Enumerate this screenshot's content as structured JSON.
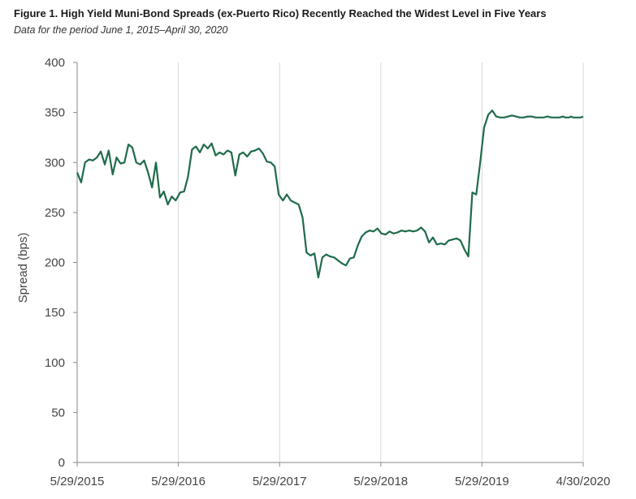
{
  "header": {
    "title": "Figure 1. High Yield Muni-Bond Spreads (ex-Puerto Rico) Recently Reached the Widest Level in Five Years",
    "subtitle": "Data for the period June 1, 2015–April 30, 2020"
  },
  "chart_data": {
    "type": "line",
    "title": "Figure 1. High Yield Muni-Bond Spreads (ex-Puerto Rico) Recently Reached the Widest Level in Five Years",
    "subtitle": "Data for the period June 1, 2015–April 30, 2020",
    "xlabel": "",
    "ylabel": "Spread (bps)",
    "x_ticks": [
      "5/29/2015",
      "5/29/2016",
      "5/29/2017",
      "5/29/2018",
      "5/29/2019",
      "4/30/2020"
    ],
    "y_ticks": [
      0,
      50,
      100,
      150,
      200,
      250,
      300,
      350,
      400
    ],
    "ylim": [
      0,
      400
    ],
    "xlim": [
      "2015-05-29",
      "2020-04-30"
    ],
    "grid": "vertical",
    "line_color": "#1f6b4a",
    "series": [
      {
        "x": [
          "2015-05-29",
          "2015-06-12",
          "2015-06-26",
          "2015-07-10",
          "2015-07-24",
          "2015-08-07",
          "2015-08-21",
          "2015-09-04",
          "2015-09-18",
          "2015-10-02",
          "2015-10-16",
          "2015-10-30",
          "2015-11-13",
          "2015-11-27",
          "2015-12-11",
          "2015-12-25",
          "2016-01-08",
          "2016-01-22",
          "2016-02-05",
          "2016-02-19",
          "2016-03-04",
          "2016-03-18",
          "2016-04-01",
          "2016-04-15",
          "2016-04-29",
          "2016-05-13",
          "2016-05-29",
          "2016-06-12",
          "2016-06-26",
          "2016-07-10",
          "2016-07-24",
          "2016-08-07",
          "2016-08-21",
          "2016-09-04",
          "2016-09-18",
          "2016-10-02",
          "2016-10-16",
          "2016-10-30",
          "2016-11-13",
          "2016-11-27",
          "2016-12-11",
          "2016-12-25",
          "2017-01-08",
          "2017-01-22",
          "2017-02-05",
          "2017-02-19",
          "2017-03-05",
          "2017-03-19",
          "2017-04-02",
          "2017-04-16",
          "2017-04-30",
          "2017-05-14",
          "2017-05-29",
          "2017-06-12",
          "2017-06-26",
          "2017-07-10",
          "2017-07-24",
          "2017-08-07",
          "2017-08-21",
          "2017-09-04",
          "2017-09-18",
          "2017-10-02",
          "2017-10-16",
          "2017-10-30",
          "2017-11-13",
          "2017-11-27",
          "2017-12-11",
          "2017-12-25",
          "2018-01-08",
          "2018-01-22",
          "2018-02-05",
          "2018-02-19",
          "2018-03-05",
          "2018-03-19",
          "2018-04-02",
          "2018-04-16",
          "2018-04-30",
          "2018-05-14",
          "2018-05-29",
          "2018-06-12",
          "2018-06-26",
          "2018-07-10",
          "2018-07-24",
          "2018-08-07",
          "2018-08-21",
          "2018-09-04",
          "2018-09-18",
          "2018-10-02",
          "2018-10-16",
          "2018-10-30",
          "2018-11-13",
          "2018-11-27",
          "2018-12-11",
          "2018-12-25",
          "2019-01-08",
          "2019-01-22",
          "2019-02-05",
          "2019-02-19",
          "2019-03-05",
          "2019-03-19",
          "2019-04-02",
          "2019-04-16",
          "2019-04-30",
          "2019-05-14",
          "2019-05-29",
          "2019-06-12",
          "2019-06-26",
          "2019-07-10",
          "2019-07-24",
          "2019-08-07",
          "2019-08-21",
          "2019-09-04",
          "2019-09-18",
          "2019-10-02",
          "2019-10-16",
          "2019-10-30",
          "2019-11-13",
          "2019-11-27",
          "2019-12-11",
          "2019-12-25",
          "2020-01-08",
          "2020-01-22",
          "2020-02-05",
          "2020-02-19",
          "2020-02-26",
          "2020-03-04",
          "2020-03-11",
          "2020-03-18",
          "2020-03-25",
          "2020-04-01",
          "2020-04-08",
          "2020-04-15",
          "2020-04-22",
          "2020-04-30"
        ],
        "values": [
          290,
          280,
          300,
          303,
          302,
          305,
          311,
          298,
          312,
          288,
          305,
          299,
          300,
          318,
          315,
          300,
          298,
          302,
          290,
          275,
          300,
          265,
          271,
          258,
          266,
          262,
          270,
          271,
          286,
          313,
          316,
          310,
          318,
          314,
          319,
          307,
          310,
          308,
          312,
          310,
          287,
          308,
          310,
          306,
          311,
          312,
          314,
          309,
          301,
          300,
          296,
          268,
          262,
          268,
          262,
          260,
          258,
          245,
          210,
          207,
          209,
          185,
          205,
          208,
          206,
          205,
          202,
          199,
          197,
          204,
          205,
          217,
          226,
          230,
          232,
          231,
          234,
          229,
          228,
          231,
          229,
          230,
          232,
          231,
          232,
          231,
          232,
          235,
          231,
          220,
          225,
          218,
          219,
          218,
          222,
          223,
          224,
          222,
          213,
          206,
          270,
          268,
          300,
          335,
          348,
          352,
          346,
          345,
          345,
          346,
          347,
          346,
          345,
          345,
          346,
          346,
          345,
          345,
          345,
          346,
          345,
          345,
          345,
          346,
          345,
          345,
          345,
          346,
          345,
          345,
          345,
          345,
          345,
          346
        ]
      }
    ]
  }
}
